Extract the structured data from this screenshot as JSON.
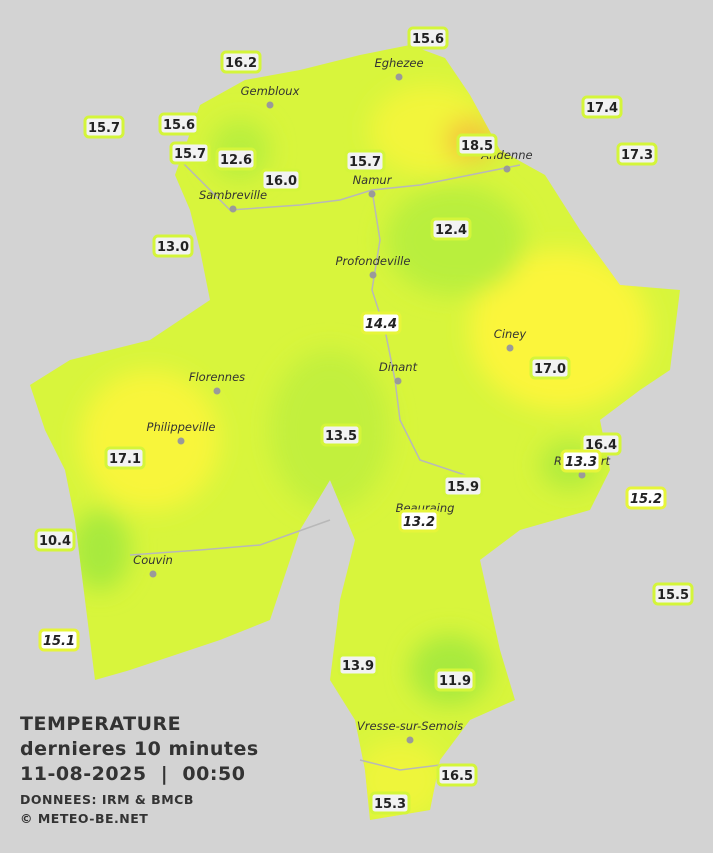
{
  "title": {
    "lines": [
      "TEMPERATURE",
      "dernieres 10 minutes",
      "11-08-2025  |  00:50"
    ],
    "source": "DONNEES: IRM & BMCB",
    "copyright": "© METEO-BE.NET"
  },
  "cities": [
    "Eghezee",
    "Gembloux",
    "Andenne",
    "Namur",
    "Sambreville",
    "Profondeville",
    "Ciney",
    "Dinant",
    "Florennes",
    "Philippeville",
    "Rochefort",
    "Beauraing",
    "Couvin",
    "Vresse-sur-Semois"
  ],
  "stations": [
    {
      "label": "15.6",
      "italic": false
    },
    {
      "label": "16.2",
      "italic": false
    },
    {
      "label": "15.7",
      "italic": false
    },
    {
      "label": "15.6",
      "italic": false
    },
    {
      "label": "15.7",
      "italic": false
    },
    {
      "label": "12.6",
      "italic": false
    },
    {
      "label": "16.0",
      "italic": false
    },
    {
      "label": "15.7",
      "italic": false
    },
    {
      "label": "18.5",
      "italic": false
    },
    {
      "label": "17.4",
      "italic": false
    },
    {
      "label": "17.3",
      "italic": false
    },
    {
      "label": "13.0",
      "italic": false
    },
    {
      "label": "12.4",
      "italic": false
    },
    {
      "label": "14.4",
      "italic": true
    },
    {
      "label": "17.0",
      "italic": false
    },
    {
      "label": "13.5",
      "italic": false
    },
    {
      "label": "16.4",
      "italic": false
    },
    {
      "label": "13.3",
      "italic": true
    },
    {
      "label": "17.1",
      "italic": false
    },
    {
      "label": "15.2",
      "italic": true
    },
    {
      "label": "15.9",
      "italic": false
    },
    {
      "label": "13.2",
      "italic": true
    },
    {
      "label": "10.4",
      "italic": false
    },
    {
      "label": "15.5",
      "italic": false
    },
    {
      "label": "15.1",
      "italic": true
    },
    {
      "label": "13.9",
      "italic": false
    },
    {
      "label": "11.9",
      "italic": false
    },
    {
      "label": "16.5",
      "italic": false
    },
    {
      "label": "15.3",
      "italic": false
    }
  ]
}
